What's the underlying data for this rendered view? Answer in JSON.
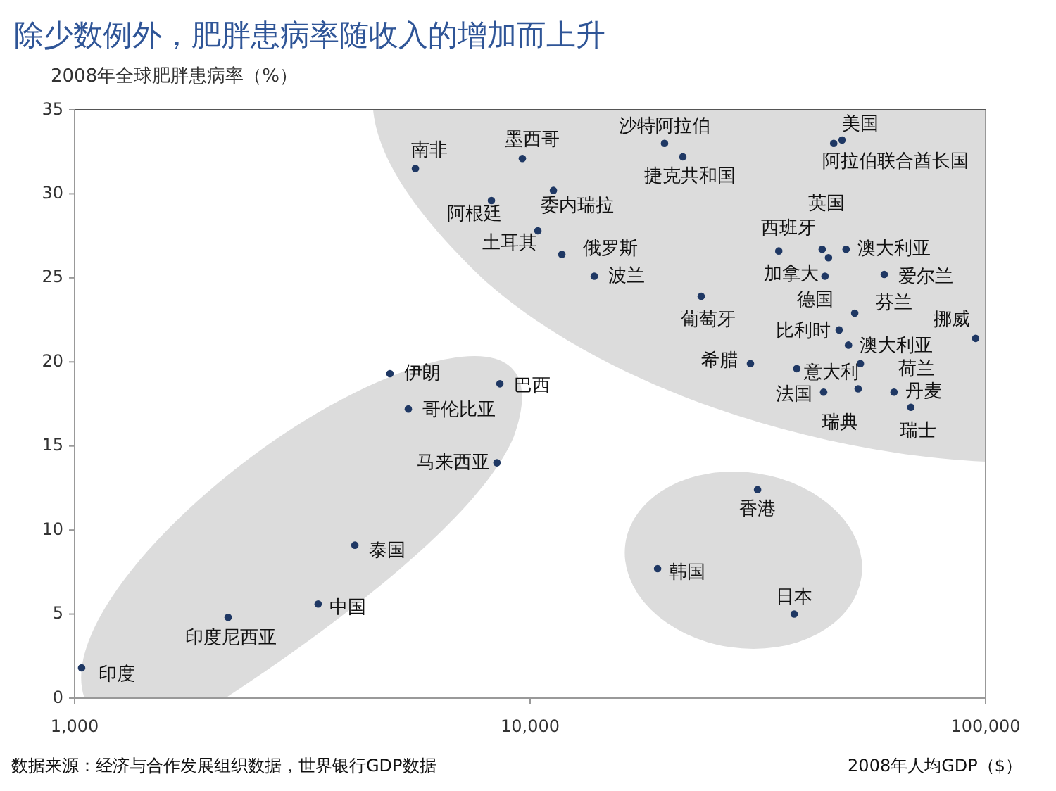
{
  "chart_data": {
    "type": "scatter",
    "title": "除少数例外，肥胖患病率随收入的增加而上升",
    "ylabel": "2008年全球肥胖患病率（%）",
    "xlabel": "2008年人均GDP（$）",
    "log": "x",
    "xlim": [
      1000,
      100000
    ],
    "xticks": [
      {
        "value": 1000,
        "label": "1,000"
      },
      {
        "value": 10000,
        "label": "10,000"
      },
      {
        "value": 100000,
        "label": "100,000"
      }
    ],
    "ylim": [
      0,
      35
    ],
    "yticks": [
      0,
      5,
      10,
      15,
      20,
      25,
      30,
      35
    ],
    "grid": false,
    "marker": "circle",
    "series": [
      {
        "color": "#1f3864",
        "x": [
          1036,
          2173,
          3425,
          4124,
          4924,
          5403,
          8456,
          8584,
          5600,
          9616,
          8223,
          11250,
          10400,
          11740,
          13830,
          19730,
          21640,
          23750,
          30460,
          48400,
          46400,
          35150,
          43780,
          45200,
          44400,
          49400,
          59900,
          51600,
          95100,
          47700,
          50000,
          38500,
          53100,
          52500,
          44100,
          62950,
          68550,
          31580,
          19050,
          37990
        ],
        "values": [
          1.8,
          4.8,
          5.6,
          9.1,
          19.3,
          17.2,
          14.0,
          18.7,
          31.5,
          32.1,
          29.6,
          30.2,
          27.8,
          26.4,
          25.1,
          33.0,
          32.2,
          23.9,
          19.9,
          33.2,
          33.0,
          26.6,
          26.7,
          26.2,
          25.1,
          26.7,
          25.2,
          22.9,
          21.4,
          21.9,
          21.0,
          19.6,
          19.9,
          18.4,
          18.2,
          18.2,
          17.3,
          12.4,
          7.7,
          5.0
        ]
      }
    ],
    "annotations": [
      {
        "text": "印度",
        "x": 1036,
        "y": 1.8
      },
      {
        "text": "印度尼西亚",
        "x": 2173,
        "y": 4.8
      },
      {
        "text": "中国",
        "x": 3425,
        "y": 5.6
      },
      {
        "text": "泰国",
        "x": 4124,
        "y": 9.1
      },
      {
        "text": "伊朗",
        "x": 4924,
        "y": 19.3
      },
      {
        "text": "哥伦比亚",
        "x": 5403,
        "y": 17.2
      },
      {
        "text": "马来西亚",
        "x": 8456,
        "y": 14.0
      },
      {
        "text": "巴西",
        "x": 8584,
        "y": 18.7
      },
      {
        "text": "南非",
        "x": 5600,
        "y": 31.5
      },
      {
        "text": "墨西哥",
        "x": 9616,
        "y": 32.1
      },
      {
        "text": "阿根廷",
        "x": 8223,
        "y": 29.6
      },
      {
        "text": "委内瑞拉",
        "x": 11250,
        "y": 30.2
      },
      {
        "text": "土耳其",
        "x": 10400,
        "y": 27.8
      },
      {
        "text": "俄罗斯",
        "x": 11740,
        "y": 26.4
      },
      {
        "text": "波兰",
        "x": 13830,
        "y": 25.1
      },
      {
        "text": "沙特阿拉伯",
        "x": 19730,
        "y": 33.0
      },
      {
        "text": "捷克共和国",
        "x": 21640,
        "y": 32.2
      },
      {
        "text": "葡萄牙",
        "x": 23750,
        "y": 23.9
      },
      {
        "text": "希腊",
        "x": 30460,
        "y": 19.9
      },
      {
        "text": "美国",
        "x": 48400,
        "y": 33.2
      },
      {
        "text": "阿拉伯联合酋长国",
        "x": 46400,
        "y": 33.0
      },
      {
        "text": "西班牙",
        "x": 35150,
        "y": 26.6
      },
      {
        "text": "英国",
        "x": 43780,
        "y": 26.7
      },
      {
        "text": "加拿大",
        "x": 45200,
        "y": 26.2
      },
      {
        "text": "德国",
        "x": 44400,
        "y": 25.1
      },
      {
        "text": "澳大利亚",
        "x": 49400,
        "y": 26.7
      },
      {
        "text": "爱尔兰",
        "x": 59900,
        "y": 25.2
      },
      {
        "text": "芬兰",
        "x": 51600,
        "y": 22.9
      },
      {
        "text": "挪威",
        "x": 95100,
        "y": 21.4
      },
      {
        "text": "比利时",
        "x": 47700,
        "y": 21.9
      },
      {
        "text": "澳大利亚",
        "x": 50000,
        "y": 21.0
      },
      {
        "text": "意大利",
        "x": 38500,
        "y": 19.6
      },
      {
        "text": "荷兰",
        "x": 53100,
        "y": 19.9
      },
      {
        "text": "瑞典",
        "x": 52500,
        "y": 18.4
      },
      {
        "text": "法国",
        "x": 44100,
        "y": 18.2
      },
      {
        "text": "丹麦",
        "x": 62950,
        "y": 18.2
      },
      {
        "text": "瑞士",
        "x": 68550,
        "y": 17.3
      },
      {
        "text": "香港",
        "x": 31580,
        "y": 12.4
      },
      {
        "text": "韩国",
        "x": 19050,
        "y": 7.7
      },
      {
        "text": "日本",
        "x": 37990,
        "y": 5.0
      },
      "数据来源：经济与合作发展组织数据，世界银行GDP数据"
    ]
  }
}
